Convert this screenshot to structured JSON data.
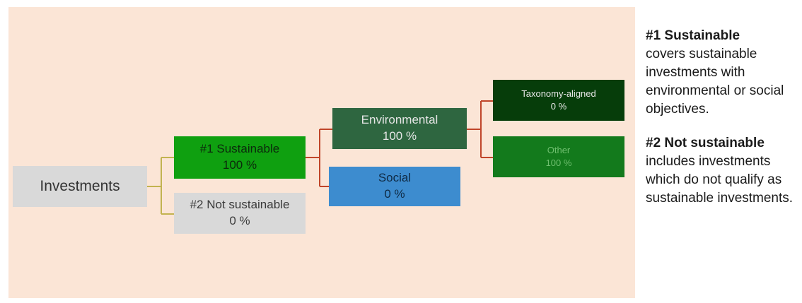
{
  "colors": {
    "background_panel": "#fbe5d6",
    "investments": "#d9d9d9",
    "sustainable": "#0fa010",
    "not_sustainable": "#d9d9d9",
    "environmental": "#2e6640",
    "social": "#3d8ccf",
    "taxonomy_aligned": "#063d0a",
    "other": "#137a1c",
    "connector_root": "#c2b350",
    "connector_branch": "#c0452a"
  },
  "nodes": {
    "investments": {
      "label": "Investments"
    },
    "sustainable": {
      "label": "#1 Sustainable",
      "value": "100 %"
    },
    "not_sustainable": {
      "label": "#2 Not sustainable",
      "value": "0 %"
    },
    "environmental": {
      "label": "Environmental",
      "value": "100 %"
    },
    "social": {
      "label": "Social",
      "value": "0 %"
    },
    "taxonomy_aligned": {
      "label": "Taxonomy-aligned",
      "value": "0 %"
    },
    "other": {
      "label": "Other",
      "value": "100 %"
    }
  },
  "legend": [
    {
      "heading": "#1 Sustainable",
      "text": "covers sustainable investments with environmental or social objectives."
    },
    {
      "heading": "#2 Not sustainable",
      "text": "includes investments which do not qualify as sustainable investments."
    }
  ]
}
